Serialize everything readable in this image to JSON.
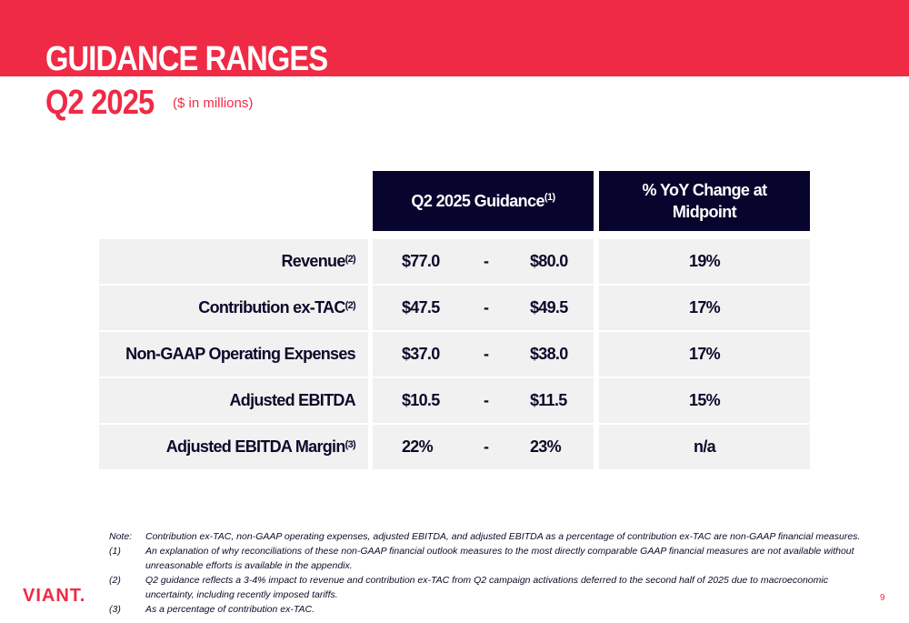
{
  "header": {
    "title": "GUIDANCE RANGES",
    "subtitle": "Q2 2025",
    "units": "($ in millions)"
  },
  "table": {
    "col_guidance": "Q2 2025 Guidance",
    "col_guidance_note": "(1)",
    "col_yoy": "% YoY Change at Midpoint",
    "rows": [
      {
        "label": "Revenue",
        "note": "(2)",
        "low": "$77.0",
        "sep": "-",
        "high": "$80.0",
        "yoy": "19%"
      },
      {
        "label": "Contribution ex-TAC",
        "note": "(2)",
        "low": "$47.5",
        "sep": "-",
        "high": "$49.5",
        "yoy": "17%"
      },
      {
        "label": "Non-GAAP Operating Expenses",
        "note": "",
        "low": "$37.0",
        "sep": "-",
        "high": "$38.0",
        "yoy": "17%"
      },
      {
        "label": "Adjusted EBITDA",
        "note": "",
        "low": "$10.5",
        "sep": "-",
        "high": "$11.5",
        "yoy": "15%"
      },
      {
        "label": "Adjusted EBITDA Margin",
        "note": "(3)",
        "low": "22%",
        "sep": "-",
        "high": "23%",
        "yoy": "n/a"
      }
    ]
  },
  "notes": [
    {
      "key": "Note:",
      "text": "Contribution ex-TAC, non-GAAP operating expenses, adjusted EBITDA, and adjusted EBITDA as a percentage of contribution ex-TAC are non-GAAP financial measures."
    },
    {
      "key": "(1)",
      "text": "An explanation of why reconciliations of these non-GAAP financial outlook measures to the most directly comparable GAAP financial measures are not available without unreasonable efforts is available in the appendix."
    },
    {
      "key": "(2)",
      "text": "Q2 guidance reflects a 3-4% impact to revenue and contribution ex-TAC from Q2 campaign activations deferred to the second half of 2025 due to macroeconomic uncertainty, including recently imposed tariffs."
    },
    {
      "key": "(3)",
      "text": "As a percentage of contribution ex-TAC."
    }
  ],
  "footer": {
    "logo": "VIANT.",
    "page_number": "9"
  },
  "colors": {
    "brand_red": "#ef2a45",
    "header_navy": "#07052e",
    "row_bg": "#f1f1f1"
  }
}
